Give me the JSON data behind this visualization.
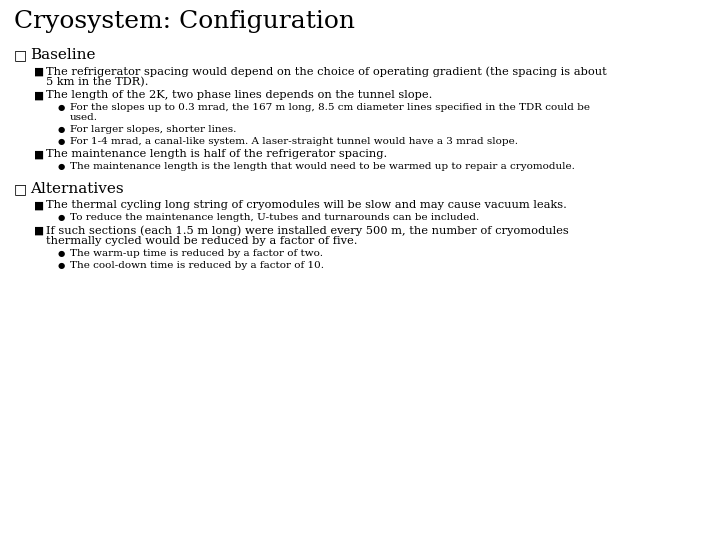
{
  "title": "Cryosystem: Configuration",
  "background_color": "#ffffff",
  "text_color": "#000000",
  "title_fontsize": 18,
  "section_fontsize": 11,
  "body_fontsize": 8.2,
  "small_fontsize": 7.5,
  "sections": [
    {
      "heading": "Baseline",
      "items": [
        {
          "level": 1,
          "lines": [
            "The refrigerator spacing would depend on the choice of operating gradient (the spacing is about",
            "5 km in the TDR)."
          ]
        },
        {
          "level": 1,
          "lines": [
            "The length of the 2K, two phase lines depends on the tunnel slope."
          ]
        },
        {
          "level": 2,
          "lines": [
            "For the slopes up to 0.3 mrad, the 167 m long, 8.5 cm diameter lines specified in the TDR could be",
            "used."
          ]
        },
        {
          "level": 2,
          "lines": [
            "For larger slopes, shorter lines."
          ]
        },
        {
          "level": 2,
          "lines": [
            "For 1-4 mrad, a canal-like system. A laser-straight tunnel would have a 3 mrad slope."
          ]
        },
        {
          "level": 1,
          "lines": [
            "The maintenance length is half of the refrigerator spacing."
          ]
        },
        {
          "level": 2,
          "lines": [
            "The maintenance length is the length that would need to be warmed up to repair a cryomodule."
          ]
        }
      ]
    },
    {
      "heading": "Alternatives",
      "items": [
        {
          "level": 1,
          "lines": [
            "The thermal cycling long string of cryomodules will be slow and may cause vacuum leaks."
          ]
        },
        {
          "level": 2,
          "lines": [
            "To reduce the maintenance length, U-tubes and turnarounds can be included."
          ]
        },
        {
          "level": 1,
          "lines": [
            "If such sections (each 1.5 m long) were installed every 500 m, the number of cryomodules",
            "thermally cycled would be reduced by a factor of five."
          ]
        },
        {
          "level": 2,
          "lines": [
            "The warm-up time is reduced by a factor of two."
          ]
        },
        {
          "level": 2,
          "lines": [
            "The cool-down time is reduced by a factor of 10."
          ]
        }
      ]
    }
  ]
}
